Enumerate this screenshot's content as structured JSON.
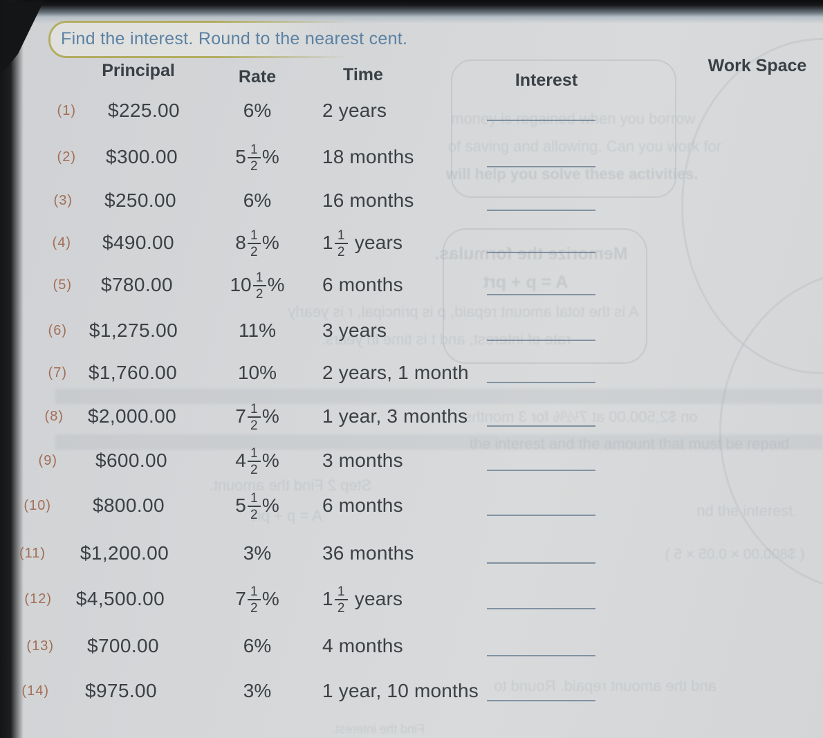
{
  "page": {
    "title": "Find the interest. Round to the nearest cent.",
    "headers": {
      "principal": "Principal",
      "rate": "Rate",
      "time": "Time",
      "interest": "Interest",
      "work_space": "Work Space"
    }
  },
  "rows": [
    {
      "num": "(1)",
      "principal": "$225.00",
      "rate": {
        "whole": "6",
        "suffix": "%"
      },
      "time": {
        "text": "2 years"
      }
    },
    {
      "num": "(2)",
      "principal": "$300.00",
      "rate": {
        "whole": "5",
        "num": "1",
        "den": "2",
        "suffix": "%"
      },
      "time": {
        "text": "18 months"
      }
    },
    {
      "num": "(3)",
      "principal": "$250.00",
      "rate": {
        "whole": "6",
        "suffix": "%"
      },
      "time": {
        "text": "16 months"
      }
    },
    {
      "num": "(4)",
      "principal": "$490.00",
      "rate": {
        "whole": "8",
        "num": "1",
        "den": "2",
        "suffix": "%"
      },
      "time": {
        "pre": "1",
        "num": "1",
        "den": "2",
        "post": "years"
      }
    },
    {
      "num": "(5)",
      "principal": "$780.00",
      "rate": {
        "whole": "10",
        "num": "1",
        "den": "2",
        "suffix": "%"
      },
      "time": {
        "text": "6 months"
      }
    },
    {
      "num": "(6)",
      "principal": "$1,275.00",
      "rate": {
        "whole": "11",
        "suffix": "%"
      },
      "time": {
        "text": "3 years"
      }
    },
    {
      "num": "(7)",
      "principal": "$1,760.00",
      "rate": {
        "whole": "10",
        "suffix": "%"
      },
      "time": {
        "text": "2 years, 1 month"
      }
    },
    {
      "num": "(8)",
      "principal": "$2,000.00",
      "rate": {
        "whole": "7",
        "num": "1",
        "den": "2",
        "suffix": "%"
      },
      "time": {
        "text": "1 year, 3 months"
      }
    },
    {
      "num": "(9)",
      "principal": "$600.00",
      "rate": {
        "whole": "4",
        "num": "1",
        "den": "2",
        "suffix": "%"
      },
      "time": {
        "text": "3 months"
      }
    },
    {
      "num": "(10)",
      "principal": "$800.00",
      "rate": {
        "whole": "5",
        "num": "1",
        "den": "2",
        "suffix": "%"
      },
      "time": {
        "text": "6 months"
      }
    },
    {
      "num": "(11)",
      "principal": "$1,200.00",
      "rate": {
        "whole": "3",
        "suffix": "%"
      },
      "time": {
        "text": "36 months"
      }
    },
    {
      "num": "(12)",
      "principal": "$4,500.00",
      "rate": {
        "whole": "7",
        "num": "1",
        "den": "2",
        "suffix": "%"
      },
      "time": {
        "pre": "1",
        "num": "1",
        "den": "2",
        "post": "years"
      }
    },
    {
      "num": "(13)",
      "principal": "$700.00",
      "rate": {
        "whole": "6",
        "suffix": "%"
      },
      "time": {
        "text": "4 months"
      }
    },
    {
      "num": "(14)",
      "principal": "$975.00",
      "rate": {
        "whole": "3",
        "suffix": "%"
      },
      "time": {
        "text": "1 year, 10 months"
      }
    }
  ],
  "colors": {
    "title_text": "#5b81a3",
    "table_text": "#3c4045",
    "row_number": "#a26e55",
    "answer_line": "#5f758a",
    "highlight_capsule": "#b2ad60",
    "page_background": "#d4d6d8"
  },
  "bleed_through": {
    "texts": [
      "money is regained when you borrow",
      "of saving and allowing. Can you work for",
      "will help you solve these activities.",
      "Memorize the formulas.",
      "A = p + prt",
      "A is the total amount repaid, p is principal, r is yearly",
      "rate of interest, and t is time in years.",
      "the interest and the amount that must be repaid",
      "on $2,500.00 at 7½% for 3 months",
      "Step 2  Find the amount.",
      "A = p + prt",
      "nd the interest.",
      "( $800.00 × 0.05 × 5 )",
      "and the amount repaid. Round to",
      "Find the interest."
    ]
  }
}
